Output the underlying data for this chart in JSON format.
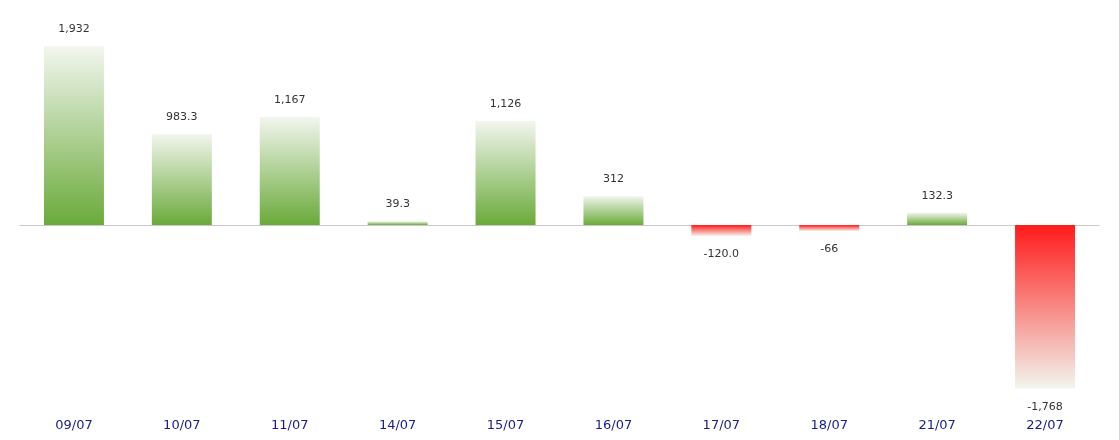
{
  "chart_data": {
    "type": "bar",
    "categories": [
      "09/07",
      "10/07",
      "11/07",
      "14/07",
      "15/07",
      "16/07",
      "17/07",
      "18/07",
      "21/07",
      "22/07"
    ],
    "values": [
      1932,
      983.3,
      1167,
      39.3,
      1126,
      312,
      -120.0,
      -66,
      132.3,
      -1768
    ],
    "value_labels": [
      "1,932",
      "983.3",
      "1,167",
      "39.3",
      "1,126",
      "312",
      "-120.0",
      "-66",
      "132.3",
      "-1,768"
    ],
    "colors": [
      "#6aaa3a",
      "#6aaa3a",
      "#6aaa3a",
      "#6aaa3a",
      "#6aaa3a",
      "#6aaa3a",
      "#ff1a1a",
      "#ff1a1a",
      "#6aaa3a",
      "#ff1a1a"
    ]
  }
}
